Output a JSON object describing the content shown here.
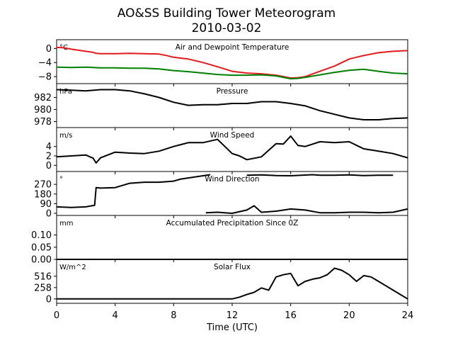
{
  "title_line1": "AO&SS Building Tower Meteorogram",
  "title_line2": "2010-03-02",
  "xlabel": "Time (UTC)",
  "chart_data": {
    "type": "line",
    "xlim": [
      0,
      24
    ],
    "xticks": [
      0,
      4,
      8,
      12,
      16,
      20,
      24
    ],
    "panels": [
      {
        "title": "Air and Dewpoint Temperature",
        "unit": "°C",
        "ylim": [
          -10,
          2.5
        ],
        "yticks": [
          0,
          -4,
          -8
        ],
        "ytick_labels": [
          "0",
          "−4",
          "−8"
        ],
        "series": [
          {
            "color": "#e31a1c",
            "x": [
              0,
              0.5,
              1,
              1.5,
              2,
              2.5,
              2.7,
              3,
              4,
              5,
              6,
              7,
              7.5,
              8,
              9,
              10,
              11,
              12,
              13,
              14,
              15,
              15.5,
              16,
              16.5,
              17,
              18,
              19,
              20,
              21,
              22,
              23,
              24
            ],
            "y": [
              0.3,
              0.2,
              -0.2,
              -0.5,
              -0.8,
              -1.1,
              -1.4,
              -1.5,
              -1.5,
              -1.4,
              -1.5,
              -1.6,
              -2.0,
              -2.5,
              -3.0,
              -4.0,
              -5.2,
              -6.5,
              -7.0,
              -7.2,
              -7.6,
              -8.0,
              -8.4,
              -8.3,
              -8.0,
              -6.5,
              -5.0,
              -3.0,
              -2.0,
              -1.2,
              -0.8,
              -0.6
            ]
          },
          {
            "color": "#008000",
            "x": [
              0,
              1,
              2,
              3,
              4,
              5,
              6,
              7,
              8,
              9,
              10,
              11,
              12,
              13,
              14,
              15,
              15.5,
              16,
              16.5,
              17,
              18,
              19,
              20,
              21,
              22,
              23,
              24
            ],
            "y": [
              -5.3,
              -5.4,
              -5.3,
              -5.5,
              -5.5,
              -5.6,
              -5.6,
              -5.8,
              -6.3,
              -6.6,
              -7.0,
              -7.4,
              -7.6,
              -7.6,
              -7.5,
              -7.8,
              -8.2,
              -8.6,
              -8.5,
              -8.2,
              -7.5,
              -6.8,
              -6.2,
              -5.9,
              -6.5,
              -7.0,
              -7.2
            ]
          }
        ]
      },
      {
        "title": "Pressure",
        "unit": "hPa",
        "ylim": [
          977,
          984.3
        ],
        "yticks": [
          982,
          980,
          978
        ],
        "ytick_labels": [
          "982",
          "980",
          "978"
        ],
        "series": [
          {
            "color": "#000000",
            "x": [
              0,
              1,
              2,
              3,
              4,
              5,
              6,
              7,
              8,
              9,
              10,
              11,
              12,
              13,
              14,
              15,
              16,
              17,
              18,
              19,
              20,
              21,
              22,
              23,
              24
            ],
            "y": [
              983.3,
              983.2,
              983.1,
              983.3,
              983.3,
              983.1,
              982.6,
              982.0,
              981.2,
              980.7,
              980.8,
              980.8,
              981.0,
              981.0,
              981.3,
              981.3,
              981.0,
              980.6,
              979.8,
              979.2,
              978.6,
              978.3,
              978.3,
              978.5,
              978.6
            ]
          }
        ]
      },
      {
        "title": "Wind Speed",
        "unit": "m/s",
        "ylim": [
          -1.3,
          8
        ],
        "yticks": [
          4,
          2,
          0
        ],
        "ytick_labels": [
          "4",
          "2",
          "0"
        ],
        "series": [
          {
            "color": "#000000",
            "x": [
              0,
              1,
              2,
              2.5,
              2.7,
              3,
              4,
              5,
              6,
              7,
              8,
              9,
              10,
              11,
              11.5,
              12,
              12.5,
              13,
              14,
              15,
              15.5,
              16,
              16.5,
              17,
              18,
              19,
              20,
              21,
              22,
              23,
              24
            ],
            "y": [
              1.8,
              2.0,
              2.2,
              1.5,
              0.5,
              1.6,
              2.8,
              2.6,
              2.5,
              3.0,
              4.0,
              4.8,
              4.8,
              5.5,
              4.0,
              2.5,
              2.0,
              1.2,
              1.8,
              4.6,
              4.5,
              6.2,
              4.2,
              4.0,
              5.0,
              4.8,
              5.0,
              3.5,
              3.0,
              2.5,
              1.6
            ]
          }
        ]
      },
      {
        "title": "Wind Direction",
        "unit": "°",
        "ylim": [
          -20,
          390
        ],
        "yticks": [
          270,
          180,
          90,
          0
        ],
        "ytick_labels": [
          "270",
          "180",
          "90",
          "0"
        ],
        "series": [
          {
            "color": "#000000",
            "x": [
              0,
              1,
              2,
              2.6,
              2.7,
              3,
              4,
              5,
              6,
              7,
              8,
              8.5,
              9,
              10,
              10.5
            ],
            "y": [
              60,
              55,
              60,
              75,
              240,
              235,
              240,
              280,
              290,
              290,
              300,
              320,
              330,
              350,
              360
            ]
          },
          {
            "color": "#000000",
            "x": [
              10.2,
              11,
              12,
              13,
              13.5,
              14,
              15,
              16,
              17,
              18,
              19,
              20,
              21,
              22,
              23,
              24
            ],
            "y": [
              5,
              10,
              0,
              30,
              70,
              10,
              20,
              40,
              30,
              5,
              5,
              10,
              10,
              5,
              10,
              40
            ]
          },
          {
            "color": "#000000",
            "x": [
              13,
              14,
              15,
              16,
              17.5,
              18,
              19,
              20,
              21,
              22,
              23
            ],
            "y": [
              355,
              358,
              352,
              350,
              360,
              355,
              355,
              358,
              352,
              355,
              355
            ]
          }
        ]
      },
      {
        "title": "Accumulated Precipitation Since 0Z",
        "unit": "mm",
        "ylim": [
          0,
          0.18
        ],
        "yticks": [
          0.1,
          0.05,
          0.0
        ],
        "ytick_labels": [
          "0.10",
          "0.05",
          "0.00"
        ],
        "series": [
          {
            "color": "#000000",
            "x": [
              0,
              24
            ],
            "y": [
              0,
              0
            ]
          }
        ]
      },
      {
        "title": "Solar Flux",
        "unit": "W/m^2",
        "ylim": [
          -100,
          900
        ],
        "yticks": [
          516,
          258,
          0
        ],
        "ytick_labels": [
          "516",
          "258",
          "0"
        ],
        "series": [
          {
            "color": "#000000",
            "x": [
              0,
              6,
              10,
              12,
              12.5,
              13,
              13.5,
              14,
              14.5,
              15,
              15.5,
              16,
              16.5,
              17,
              17.5,
              18,
              18.5,
              19,
              19.5,
              20,
              20.5,
              21,
              21.5,
              22,
              22.5,
              23,
              23.5,
              24
            ],
            "y": [
              0,
              0,
              0,
              0,
              40,
              100,
              150,
              250,
              200,
              500,
              550,
              580,
              300,
              400,
              450,
              480,
              550,
              700,
              650,
              550,
              400,
              530,
              500,
              400,
              300,
              200,
              100,
              0
            ]
          }
        ]
      }
    ]
  }
}
